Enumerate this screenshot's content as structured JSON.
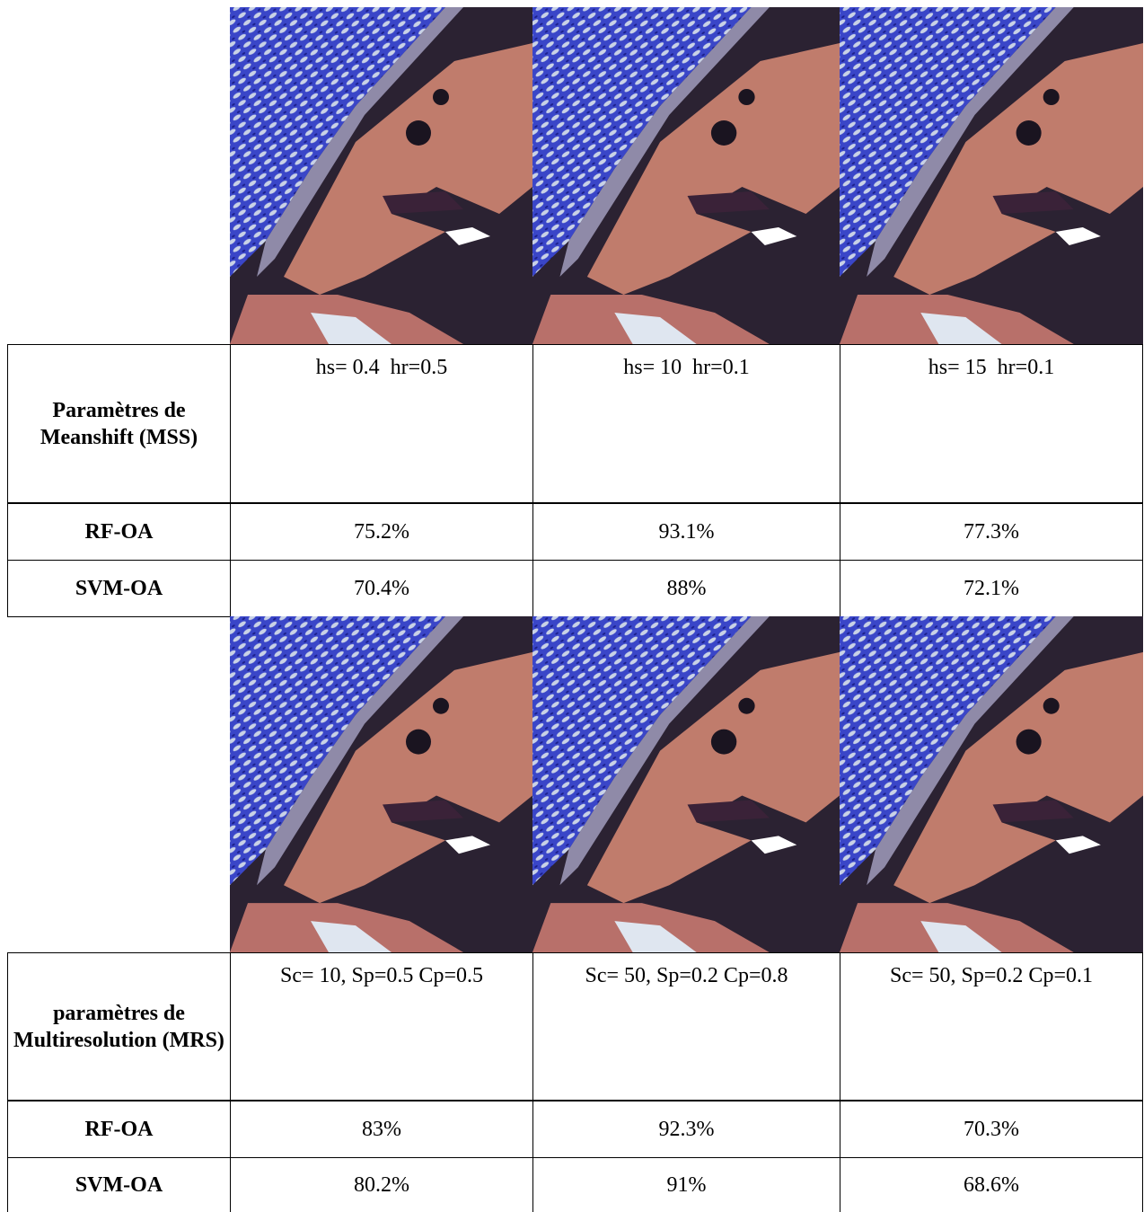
{
  "sections": [
    {
      "parameters": {
        "label": "Paramètres de Meanshift (MSS)",
        "values": [
          "hs= 0.4  hr=0.5",
          "hs= 10  hr=0.1",
          "hs= 15  hr=0.1"
        ]
      },
      "rows": [
        {
          "label": "RF-OA",
          "values": [
            "75.2%",
            "93.1%",
            "77.3%"
          ]
        },
        {
          "label": "SVM-OA",
          "values": [
            "70.4%",
            "88%",
            "72.1%"
          ]
        }
      ]
    },
    {
      "parameters": {
        "label": "paramètres de Multiresolution (MRS)",
        "values": [
          "Sc= 10, Sp=0.5 Cp=0.5",
          "Sc= 50, Sp=0.2 Cp=0.8",
          "Sc= 50, Sp=0.2 Cp=0.1"
        ]
      },
      "rows": [
        {
          "label": "RF-OA",
          "values": [
            "83%",
            "92.3%",
            "70.3%"
          ]
        },
        {
          "label": "SVM-OA",
          "values": [
            "80.2%",
            "91%",
            "68.6%"
          ]
        }
      ]
    }
  ]
}
